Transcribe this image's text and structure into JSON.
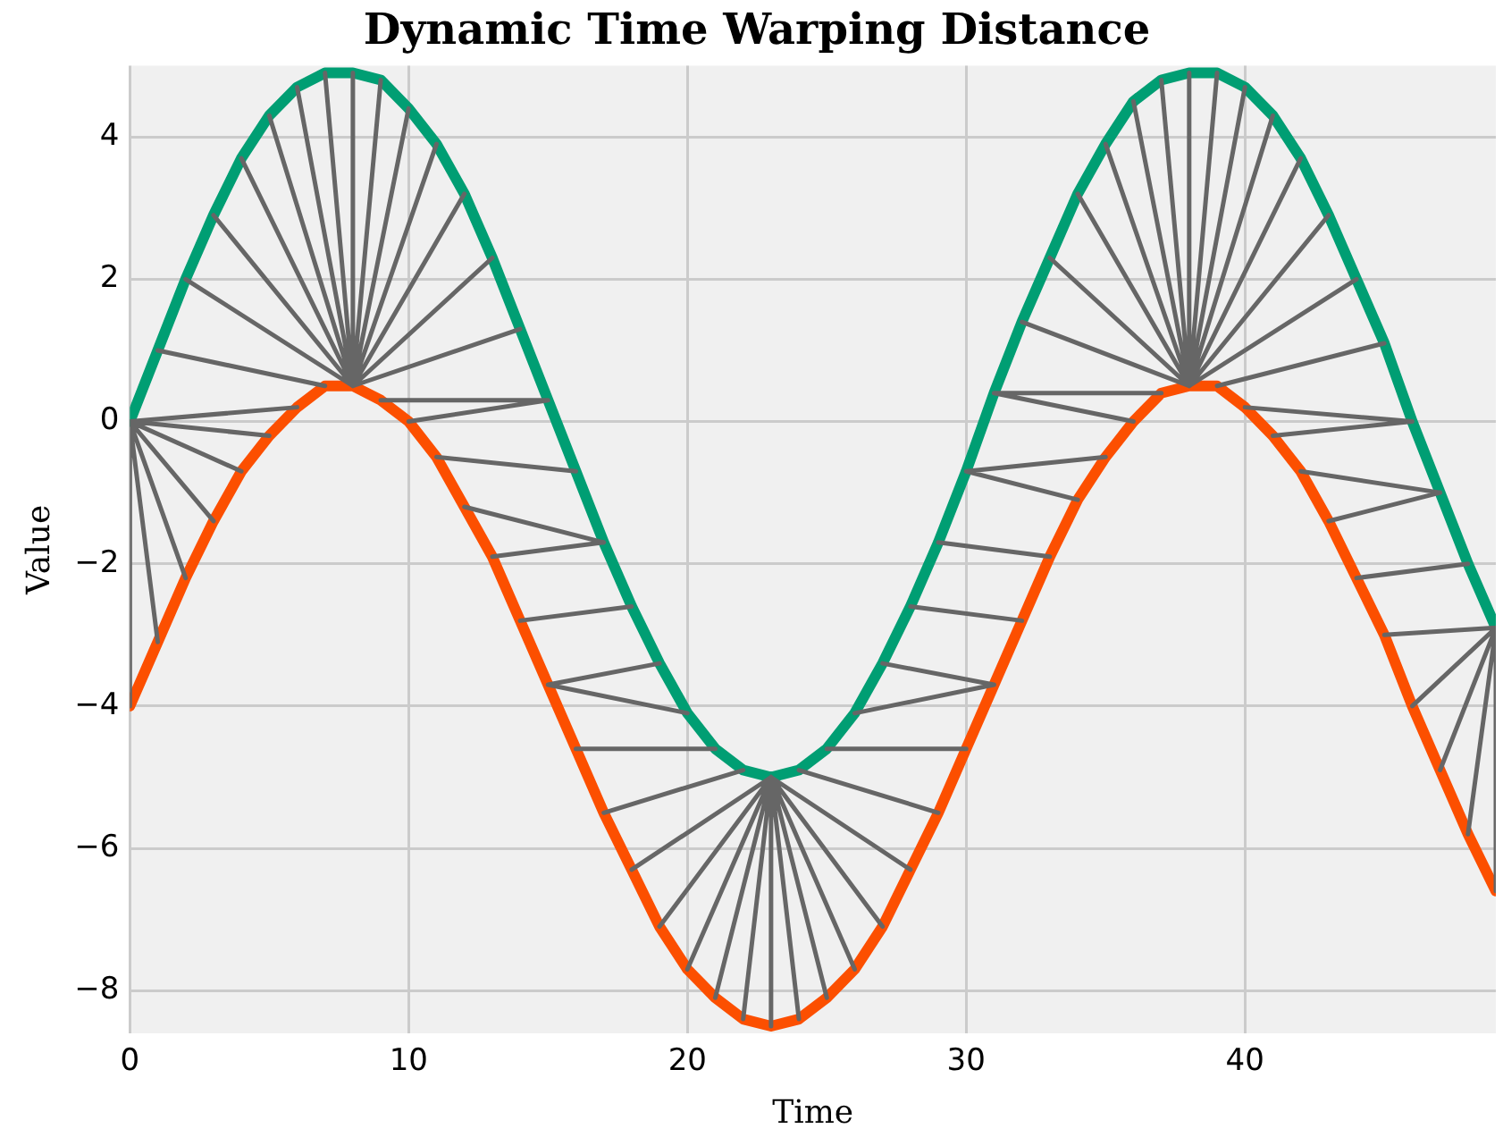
{
  "chart_data": {
    "type": "line",
    "title": "Dynamic Time Warping Distance",
    "xlabel": "Time",
    "ylabel": "Value",
    "xlim": [
      0,
      49
    ],
    "xticks": [
      0,
      10,
      20,
      30,
      40
    ],
    "ylim": [
      -8.6,
      5
    ],
    "yticks": [
      {
        "value": -8,
        "label": "−8"
      },
      {
        "value": -6,
        "label": "−6"
      },
      {
        "value": -4,
        "label": "−4"
      },
      {
        "value": -2,
        "label": "−2"
      },
      0,
      2,
      4
    ],
    "grid": true,
    "legend": false,
    "marker": "none",
    "line_style": "solid",
    "series": [
      {
        "color": "#666666",
        "x": [
          0,
          0,
          null,
          0,
          1,
          null,
          0,
          2,
          null,
          0,
          3,
          null,
          0,
          4,
          null,
          0,
          5,
          null,
          0,
          6,
          null,
          1,
          7,
          null,
          2,
          8,
          null,
          3,
          8,
          null,
          4,
          8,
          null,
          5,
          8,
          null,
          6,
          8,
          null,
          7,
          8,
          null,
          8,
          8,
          null,
          9,
          8,
          null,
          10,
          8,
          null,
          11,
          8,
          null,
          12,
          8,
          null,
          13,
          8,
          null,
          14,
          8,
          null,
          15,
          9,
          null,
          15,
          10,
          null,
          16,
          11,
          null,
          17,
          12,
          null,
          17,
          13,
          null,
          18,
          14,
          null,
          19,
          15,
          null,
          20,
          15,
          null,
          21,
          16,
          null,
          22,
          17,
          null,
          23,
          18,
          null,
          23,
          19,
          null,
          23,
          20,
          null,
          23,
          21,
          null,
          23,
          22,
          null,
          23,
          23,
          null,
          23,
          24,
          null,
          23,
          25,
          null,
          23,
          26,
          null,
          23,
          27,
          null,
          23,
          28,
          null,
          24,
          29,
          null,
          25,
          30,
          null,
          26,
          31,
          null,
          27,
          31,
          null,
          28,
          32,
          null,
          29,
          33,
          null,
          30,
          34,
          null,
          30,
          35,
          null,
          31,
          36,
          null,
          31,
          37,
          null,
          32,
          38,
          null,
          33,
          38,
          null,
          34,
          38,
          null,
          35,
          38,
          null,
          36,
          38,
          null,
          37,
          38,
          null,
          38,
          38,
          null,
          39,
          38,
          null,
          40,
          38,
          null,
          41,
          38,
          null,
          42,
          38,
          null,
          43,
          38,
          null,
          44,
          38,
          null,
          45,
          39,
          null,
          46,
          40,
          null,
          46,
          41,
          null,
          47,
          42,
          null,
          47,
          43,
          null,
          48,
          44,
          null,
          49,
          45,
          null,
          49,
          46,
          null,
          49,
          47,
          null,
          49,
          48,
          null,
          49,
          49,
          null
        ],
        "values": [
          0,
          -4.0,
          null,
          0,
          -3.1,
          null,
          0,
          -2.2,
          null,
          0,
          -1.4,
          null,
          0,
          -0.7,
          null,
          0,
          -0.2,
          null,
          0,
          0.2,
          null,
          1.0,
          0.5,
          null,
          2.0,
          0.5,
          null,
          2.9,
          0.5,
          null,
          3.7,
          0.5,
          null,
          4.3,
          0.5,
          null,
          4.7,
          0.5,
          null,
          4.9,
          0.5,
          null,
          4.9,
          0.5,
          null,
          4.8,
          0.5,
          null,
          4.4,
          0.5,
          null,
          3.9,
          0.5,
          null,
          3.2,
          0.5,
          null,
          2.3,
          0.5,
          null,
          1.3,
          0.5,
          null,
          0.3,
          0.3,
          null,
          0.3,
          0.0,
          null,
          -0.7,
          -0.5,
          null,
          -1.7,
          -1.2,
          null,
          -1.7,
          -1.9,
          null,
          -2.6,
          -2.8,
          null,
          -3.4,
          -3.7,
          null,
          -4.1,
          -3.7,
          null,
          -4.6,
          -4.6,
          null,
          -4.9,
          -5.5,
          null,
          -5.0,
          -6.3,
          null,
          -5.0,
          -7.1,
          null,
          -5.0,
          -7.7,
          null,
          -5.0,
          -8.1,
          null,
          -5.0,
          -8.4,
          null,
          -5.0,
          -8.5,
          null,
          -5.0,
          -8.4,
          null,
          -5.0,
          -8.1,
          null,
          -5.0,
          -7.7,
          null,
          -5.0,
          -7.1,
          null,
          -5.0,
          -6.3,
          null,
          -4.9,
          -5.5,
          null,
          -4.6,
          -4.6,
          null,
          -4.1,
          -3.7,
          null,
          -3.4,
          -3.7,
          null,
          -2.6,
          -2.8,
          null,
          -1.7,
          -1.9,
          null,
          -0.7,
          -1.1,
          null,
          -0.7,
          -0.5,
          null,
          0.4,
          0.0,
          null,
          0.4,
          0.4,
          null,
          1.4,
          0.5,
          null,
          2.3,
          0.5,
          null,
          3.2,
          0.5,
          null,
          3.9,
          0.5,
          null,
          4.5,
          0.5,
          null,
          4.8,
          0.5,
          null,
          4.9,
          0.5,
          null,
          4.9,
          0.5,
          null,
          4.7,
          0.5,
          null,
          4.3,
          0.5,
          null,
          3.7,
          0.5,
          null,
          2.9,
          0.5,
          null,
          2.0,
          0.5,
          null,
          1.1,
          0.5,
          null,
          0.0,
          0.2,
          null,
          0.0,
          -0.2,
          null,
          -1.0,
          -0.7,
          null,
          -1.0,
          -1.4,
          null,
          -2.0,
          -2.2,
          null,
          -2.9,
          -3.0,
          null,
          -2.9,
          -4.0,
          null,
          -2.9,
          -4.9,
          null,
          -2.9,
          -5.8,
          null,
          -2.9,
          -6.6,
          null
        ]
      },
      {
        "color": "#009e73",
        "x": [
          0,
          1,
          2,
          3,
          4,
          5,
          6,
          7,
          8,
          9,
          10,
          11,
          12,
          13,
          14,
          15,
          16,
          17,
          18,
          19,
          20,
          21,
          22,
          23,
          24,
          25,
          26,
          27,
          28,
          29,
          30,
          31,
          32,
          33,
          34,
          35,
          36,
          37,
          38,
          39,
          40,
          41,
          42,
          43,
          44,
          45,
          46,
          47,
          48,
          49
        ],
        "values": [
          0,
          1.0,
          2.0,
          2.9,
          3.7,
          4.3,
          4.7,
          4.9,
          4.9,
          4.8,
          4.4,
          3.9,
          3.2,
          2.3,
          1.3,
          0.3,
          -0.7,
          -1.7,
          -2.6,
          -3.4,
          -4.1,
          -4.6,
          -4.9,
          -5.0,
          -4.9,
          -4.6,
          -4.1,
          -3.4,
          -2.6,
          -1.7,
          -0.7,
          0.4,
          1.4,
          2.3,
          3.2,
          3.9,
          4.5,
          4.8,
          4.9,
          4.9,
          4.7,
          4.3,
          3.7,
          2.9,
          2.0,
          1.1,
          0.0,
          -1.0,
          -2.0,
          -2.9
        ]
      },
      {
        "color": "#fc4f00",
        "x": [
          0,
          1,
          2,
          3,
          4,
          5,
          6,
          7,
          8,
          9,
          10,
          11,
          12,
          13,
          14,
          15,
          16,
          17,
          18,
          19,
          20,
          21,
          22,
          23,
          24,
          25,
          26,
          27,
          28,
          29,
          30,
          31,
          32,
          33,
          34,
          35,
          36,
          37,
          38,
          39,
          40,
          41,
          42,
          43,
          44,
          45,
          46,
          47,
          48,
          49
        ],
        "values": [
          -4.0,
          -3.1,
          -2.2,
          -1.4,
          -0.7,
          -0.2,
          0.2,
          0.5,
          0.5,
          0.3,
          0.0,
          -0.5,
          -1.2,
          -1.9,
          -2.8,
          -3.7,
          -4.6,
          -5.5,
          -6.3,
          -7.1,
          -7.7,
          -8.1,
          -8.4,
          -8.5,
          -8.4,
          -8.1,
          -7.7,
          -7.1,
          -6.3,
          -5.5,
          -4.6,
          -3.7,
          -2.8,
          -1.9,
          -1.1,
          -0.5,
          0.0,
          0.4,
          0.5,
          0.5,
          0.2,
          -0.2,
          -0.7,
          -1.4,
          -2.2,
          -3.0,
          -4.0,
          -4.9,
          -5.8,
          -6.6
        ]
      }
    ]
  }
}
